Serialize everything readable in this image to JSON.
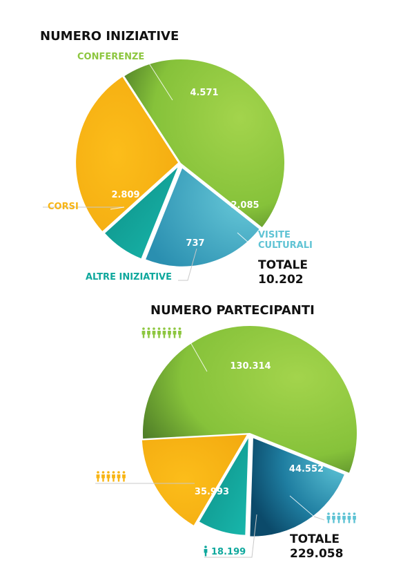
{
  "chart_data": [
    {
      "type": "pie",
      "title": "NUMERO INIZIATIVE",
      "slices": [
        {
          "label": "CONFERENZE",
          "value": 4571,
          "display": "4.571",
          "color": "#8dc63f"
        },
        {
          "label": "VISITE CULTURALI",
          "value": 2085,
          "display": "2.085",
          "color": "#3aa9bf"
        },
        {
          "label": "ALTRE INIZIATIVE",
          "value": 737,
          "display": "737",
          "color": "#0fa89d"
        },
        {
          "label": "CORSI",
          "value": 2809,
          "display": "2.809",
          "color": "#f7b515"
        }
      ],
      "total_label": "TOTALE",
      "total_value": "10.202"
    },
    {
      "type": "pie",
      "title": "NUMERO PARTECIPANTI",
      "slices": [
        {
          "label": "",
          "value": 130314,
          "display": "130.314",
          "color": "#8dc63f",
          "icon": "people-group-icon"
        },
        {
          "label": "",
          "value": 44552,
          "display": "44.552",
          "color": "#1e83a3",
          "icon": "people-group-icon"
        },
        {
          "label": "",
          "value": 18199,
          "display": "18.199",
          "color": "#0fa89d",
          "icon": "person-icon"
        },
        {
          "label": "",
          "value": 35993,
          "display": "35.993",
          "color": "#f7b515",
          "icon": "people-group-icon"
        }
      ],
      "total_label": "TOTALE",
      "total_value": "229.058"
    }
  ]
}
